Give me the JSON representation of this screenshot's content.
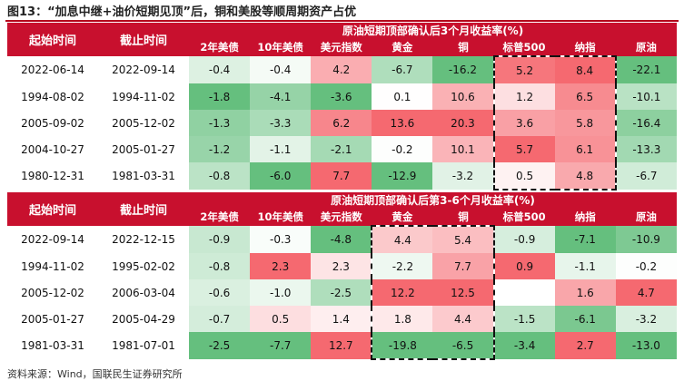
{
  "title": "图13：“加息中继+油价短期见顶”后，铜和美股等顺周期资产占优",
  "tables": [
    {
      "date_headers": [
        "起始时间",
        "截止时间"
      ],
      "group_header": "原油短期顶部确认后3个月收益率(%)",
      "columns": [
        "2年美债",
        "10年美债",
        "美元指数",
        "黄金",
        "铜",
        "标普500",
        "纳指",
        "原油"
      ],
      "rows": [
        [
          "2022-06-14",
          "2022-09-14",
          "-0.4",
          "-0.4",
          "4.2",
          "-6.7",
          "-16.2",
          "5.2",
          "8.4",
          "-22.1"
        ],
        [
          "1994-08-02",
          "1994-11-02",
          "-1.8",
          "-4.1",
          "-3.6",
          "0.1",
          "10.6",
          "1.2",
          "6.5",
          "-10.1"
        ],
        [
          "2005-09-02",
          "2005-12-02",
          "-1.3",
          "-3.3",
          "6.2",
          "13.6",
          "20.3",
          "3.6",
          "5.8",
          "-16.4"
        ],
        [
          "2004-10-27",
          "2005-01-27",
          "-1.2",
          "-1.1",
          "-2.1",
          "-0.2",
          "10.1",
          "5.7",
          "6.1",
          "-13.3"
        ],
        [
          "1980-12-31",
          "1981-03-31",
          "-0.8",
          "-6.0",
          "7.7",
          "-12.9",
          "-3.2",
          "0.5",
          "4.8",
          "-6.7"
        ]
      ]
    },
    {
      "date_headers": [
        "起始时间",
        "截止时间"
      ],
      "group_header": "原油短期顶部确认后第3-6个月收益率(%)",
      "columns": [
        "2年美债",
        "10年美债",
        "美元指数",
        "黄金",
        "铜",
        "标普500",
        "纳指",
        "原油"
      ],
      "rows": [
        [
          "2022-09-14",
          "2022-12-15",
          "-0.9",
          "-0.3",
          "-4.8",
          "4.4",
          "5.4",
          "-0.9",
          "-7.1",
          "-10.9"
        ],
        [
          "1994-11-02",
          "1995-02-02",
          "-0.8",
          "2.3",
          "2.3",
          "-2.2",
          "7.7",
          "0.9",
          "-1.1",
          "-0.2"
        ],
        [
          "2005-12-02",
          "2006-03-04",
          "-0.6",
          "-1.0",
          "-2.5",
          "12.2",
          "12.5",
          null,
          "1.6",
          "4.7"
        ],
        [
          "2005-01-27",
          "2005-04-29",
          "-0.7",
          "0.5",
          "1.4",
          "1.8",
          "4.4",
          "-1.5",
          "-6.1",
          "-3.2"
        ],
        [
          "1981-03-31",
          "1981-07-01",
          "-2.5",
          "-7.7",
          "12.7",
          "-19.8",
          "-6.5",
          "-3.4",
          "2.7",
          "-13.0"
        ]
      ]
    }
  ],
  "source": "资料来源：Wind，国联民生证券研究所"
}
